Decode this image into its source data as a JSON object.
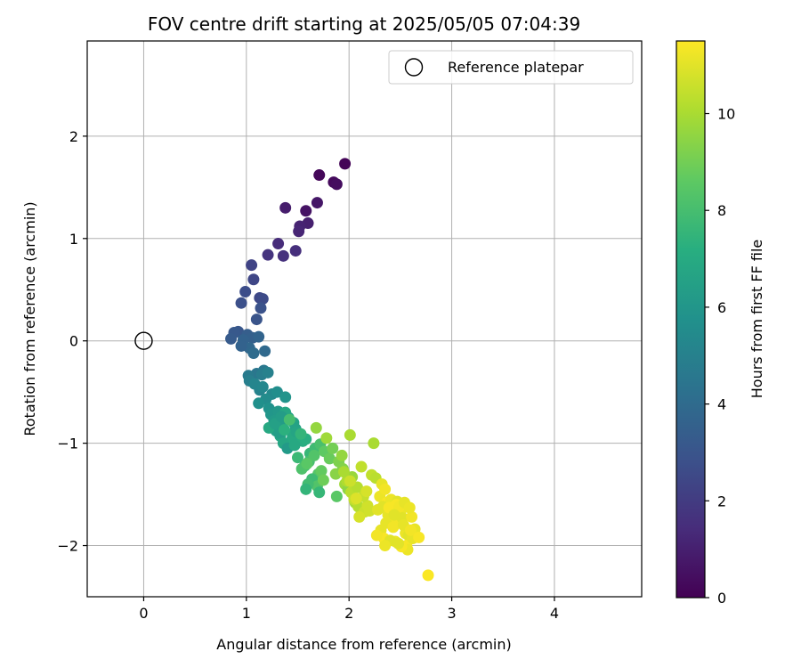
{
  "chart_data": {
    "type": "scatter",
    "title": "FOV centre drift starting at 2025/05/05 07:04:39",
    "xlabel": "Angular distance from reference (arcmin)",
    "ylabel": "Rotation from reference (arcmin)",
    "xlim": [
      -0.55,
      4.85
    ],
    "ylim": [
      -2.5,
      2.93
    ],
    "xticks": [
      0,
      1,
      2,
      3,
      4
    ],
    "xtick_labels": [
      "0",
      "1",
      "2",
      "3",
      "4"
    ],
    "yticks": [
      -2,
      -1,
      0,
      1,
      2
    ],
    "ytick_labels": [
      "−2",
      "−1",
      "0",
      "1",
      "2"
    ],
    "grid": true,
    "legend": {
      "label": "Reference platepar",
      "placement": "top-right",
      "marker": "open-circle"
    },
    "reference": {
      "x": 0,
      "y": 0
    },
    "colorbar": {
      "label": "Hours from first FF file",
      "colormap": "viridis",
      "range": [
        0,
        11.5
      ],
      "ticks": [
        0,
        2,
        4,
        6,
        8,
        10
      ],
      "tick_labels": [
        "0",
        "2",
        "4",
        "6",
        "8",
        "10"
      ]
    },
    "points": {
      "x": [
        1.96,
        1.71,
        1.85,
        1.88,
        1.58,
        1.69,
        1.38,
        1.6,
        1.52,
        1.51,
        1.31,
        1.48,
        1.36,
        1.21,
        1.05,
        1.07,
        1.13,
        1.16,
        0.99,
        0.95,
        1.14,
        1.1,
        0.92,
        0.88,
        0.85,
        1.01,
        1.06,
        0.97,
        1.12,
        1.03,
        1.18,
        1.07,
        0.95,
        1.1,
        1.17,
        1.02,
        1.15,
        1.03,
        1.21,
        1.13,
        1.08,
        1.16,
        1.25,
        1.19,
        1.3,
        1.12,
        1.22,
        1.38,
        1.24,
        1.31,
        1.27,
        1.35,
        1.41,
        1.29,
        1.46,
        1.33,
        1.38,
        1.22,
        1.44,
        1.32,
        1.48,
        1.36,
        1.52,
        1.4,
        1.28,
        1.45,
        1.55,
        1.34,
        1.49,
        1.42,
        1.58,
        1.47,
        1.37,
        1.53,
        1.62,
        1.5,
        1.67,
        1.57,
        1.61,
        1.72,
        1.54,
        1.66,
        1.7,
        1.59,
        1.76,
        1.64,
        1.69,
        1.73,
        1.6,
        1.78,
        1.81,
        1.68,
        1.75,
        1.58,
        1.71,
        1.84,
        1.9,
        1.87,
        1.93,
        1.96,
        2.01,
        1.88,
        1.94,
        1.99,
        2.03,
        2.06,
        1.98,
        2.09,
        2.02,
        2.12,
        2.05,
        2.15,
        2.08,
        1.95,
        2.18,
        2.1,
        2.22,
        2.14,
        2.01,
        2.26,
        2.2,
        2.17,
        2.07,
        2.24,
        2.28,
        2.32,
        2.3,
        2.35,
        2.37,
        2.33,
        2.38,
        2.41,
        2.44,
        2.39,
        2.47,
        2.36,
        2.5,
        2.43,
        2.46,
        2.52,
        2.31,
        2.55,
        2.49,
        2.34,
        2.58,
        2.53,
        2.45,
        2.61,
        2.56,
        2.4,
        2.64,
        2.57,
        2.27,
        2.51,
        2.48,
        2.62,
        2.35,
        2.6,
        2.68,
        2.44,
        2.54,
        2.59,
        2.77
      ],
      "y": [
        1.73,
        1.62,
        1.55,
        1.53,
        1.27,
        1.35,
        1.3,
        1.15,
        1.12,
        1.07,
        0.95,
        0.88,
        0.83,
        0.84,
        0.74,
        0.6,
        0.42,
        0.41,
        0.48,
        0.37,
        0.32,
        0.21,
        0.09,
        0.08,
        0.02,
        0.06,
        0.03,
        0.01,
        0.04,
        -0.07,
        -0.1,
        -0.12,
        -0.05,
        -0.32,
        -0.29,
        -0.34,
        -0.33,
        -0.39,
        -0.31,
        -0.48,
        -0.42,
        -0.45,
        -0.52,
        -0.57,
        -0.5,
        -0.61,
        -0.66,
        -0.55,
        -0.72,
        -0.69,
        -0.78,
        -0.83,
        -0.75,
        -0.88,
        -0.8,
        -0.93,
        -0.7,
        -0.85,
        -0.97,
        -0.9,
        -0.86,
        -1.0,
        -0.94,
        -1.05,
        -0.81,
        -0.92,
        -0.98,
        -0.74,
        -0.89,
        -0.77,
        -0.96,
        -1.02,
        -0.87,
        -0.91,
        -1.1,
        -1.14,
        -1.05,
        -1.22,
        -1.18,
        -1.01,
        -1.25,
        -1.12,
        -1.3,
        -1.2,
        -1.08,
        -1.35,
        -1.42,
        -1.27,
        -1.4,
        -0.95,
        -1.15,
        -0.85,
        -1.36,
        -1.45,
        -1.48,
        -1.05,
        -1.18,
        -1.3,
        -1.12,
        -1.4,
        -0.92,
        -1.52,
        -1.25,
        -1.45,
        -1.33,
        -1.58,
        -1.37,
        -1.62,
        -1.48,
        -1.23,
        -1.55,
        -1.67,
        -1.43,
        -1.28,
        -1.61,
        -1.72,
        -1.31,
        -1.52,
        -1.37,
        -1.34,
        -1.66,
        -1.47,
        -1.54,
        -1.0,
        -1.65,
        -1.4,
        -1.52,
        -1.45,
        -1.58,
        -1.62,
        -1.7,
        -1.55,
        -1.75,
        -1.63,
        -1.57,
        -1.78,
        -1.68,
        -1.82,
        -1.6,
        -1.73,
        -1.85,
        -1.88,
        -1.62,
        -1.93,
        -1.9,
        -1.8,
        -1.96,
        -1.72,
        -2.0,
        -1.95,
        -1.84,
        -2.04,
        -1.9,
        -2.01,
        -1.98,
        -1.93,
        -2.0,
        -1.85,
        -1.92,
        -1.7,
        -1.58,
        -1.63,
        -2.29
      ],
      "hours": [
        0.1,
        0.2,
        0.3,
        0.4,
        0.6,
        0.7,
        0.9,
        1.0,
        1.1,
        1.2,
        1.4,
        1.5,
        1.6,
        1.7,
        2.3,
        2.4,
        2.5,
        2.6,
        2.7,
        2.8,
        2.9,
        3.0,
        3.1,
        3.2,
        3.3,
        3.4,
        3.5,
        3.6,
        3.7,
        3.8,
        3.9,
        4.0,
        3.6,
        4.5,
        4.6,
        4.7,
        4.8,
        4.9,
        5.0,
        5.1,
        5.2,
        5.3,
        5.4,
        5.5,
        5.6,
        5.7,
        5.8,
        5.9,
        6.0,
        6.1,
        6.2,
        6.3,
        6.4,
        6.5,
        6.6,
        6.7,
        6.8,
        6.9,
        7.0,
        6.4,
        6.6,
        6.8,
        7.0,
        6.2,
        6.5,
        6.9,
        7.1,
        6.3,
        6.7,
        8.0,
        7.2,
        6.9,
        7.3,
        7.5,
        7.6,
        7.7,
        7.8,
        7.9,
        8.0,
        8.1,
        8.2,
        8.3,
        8.4,
        8.5,
        8.6,
        7.8,
        8.3,
        8.7,
        7.9,
        9.8,
        8.8,
        9.6,
        8.9,
        7.5,
        7.6,
        9.0,
        9.2,
        9.4,
        9.6,
        9.8,
        10.0,
        8.5,
        9.3,
        9.5,
        9.7,
        9.9,
        10.1,
        10.2,
        10.3,
        10.4,
        10.5,
        10.6,
        10.2,
        10.0,
        10.7,
        10.8,
        10.4,
        10.5,
        10.6,
        10.3,
        10.7,
        10.8,
        10.9,
        10.0,
        11.0,
        11.1,
        11.2,
        11.3,
        11.4,
        11.0,
        11.1,
        11.2,
        11.3,
        11.4,
        11.0,
        11.1,
        11.2,
        11.3,
        11.4,
        11.0,
        11.1,
        11.2,
        11.3,
        11.4,
        11.0,
        11.1,
        11.2,
        11.3,
        11.4,
        11.0,
        11.1,
        11.2,
        11.3,
        11.4,
        11.0,
        11.1,
        11.2,
        11.3,
        11.4,
        11.0,
        11.1,
        11.2,
        11.45
      ]
    }
  }
}
